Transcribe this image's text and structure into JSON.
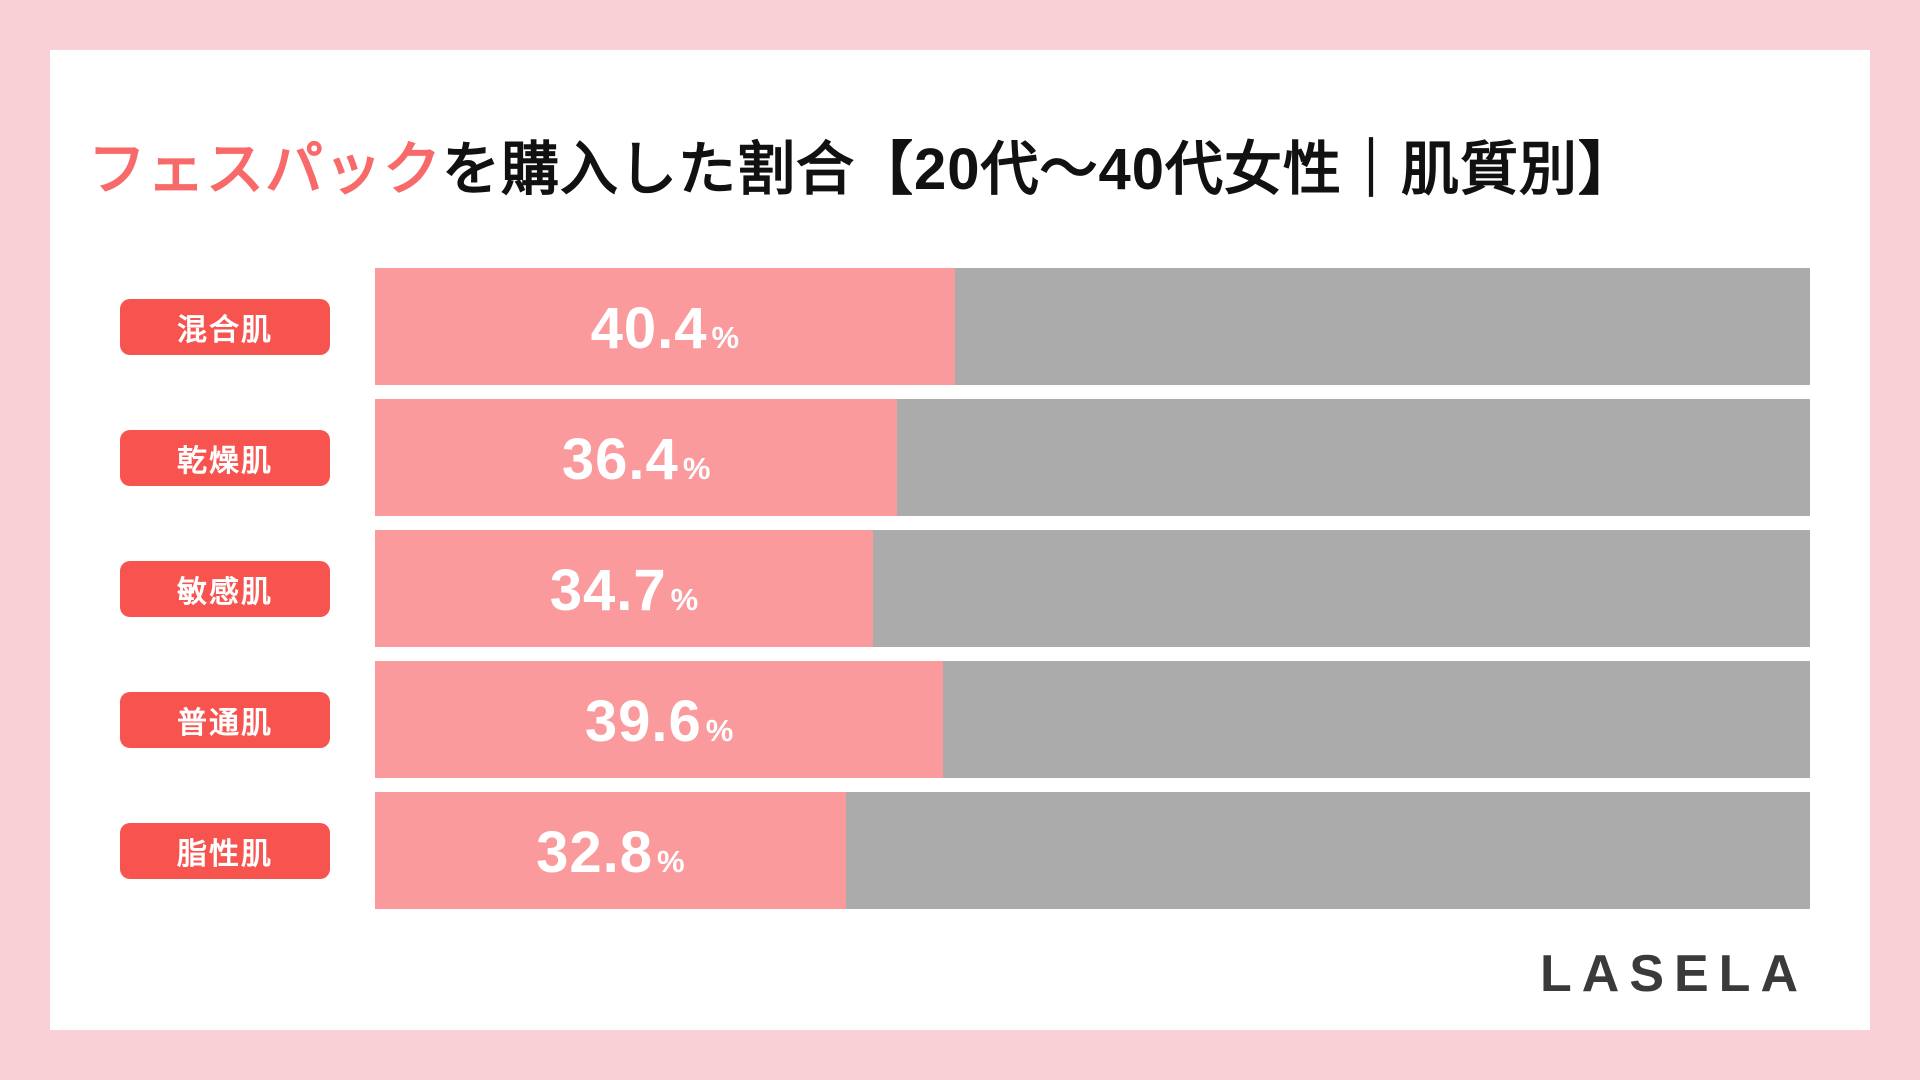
{
  "header": {
    "title_accent": "フェスパック",
    "title_rest": "を購入した割合【20代～40代女性｜肌質別】"
  },
  "chart_data": {
    "type": "bar",
    "orientation": "horizontal",
    "title": "フェスパックを購入した割合【20代～40代女性｜肌質別】",
    "unit": "%",
    "percent_sign": "%",
    "xlim": [
      0,
      100
    ],
    "grid": false,
    "legend": false,
    "categories": [
      "混合肌",
      "乾燥肌",
      "敏感肌",
      "普通肌",
      "脂性肌"
    ],
    "values": [
      40.4,
      36.4,
      34.7,
      39.6,
      32.8
    ],
    "rows": [
      {
        "label": "混合肌",
        "value": 40.4,
        "display": "40.4"
      },
      {
        "label": "乾燥肌",
        "value": 36.4,
        "display": "36.4"
      },
      {
        "label": "敏感肌",
        "value": 34.7,
        "display": "34.7"
      },
      {
        "label": "普通肌",
        "value": 39.6,
        "display": "39.6"
      },
      {
        "label": "脂性肌",
        "value": 32.8,
        "display": "32.8"
      }
    ]
  },
  "footer": {
    "brand": "LASELA"
  },
  "colors": {
    "bg": "#f9d0d5",
    "card": "#ffffff",
    "accent": "#f8696a",
    "pill": "#f7534f",
    "bar-fill": "#fa9a9d",
    "bar-track": "#ababab",
    "title-text": "#111111",
    "logo-color": "#3a3a3a"
  }
}
